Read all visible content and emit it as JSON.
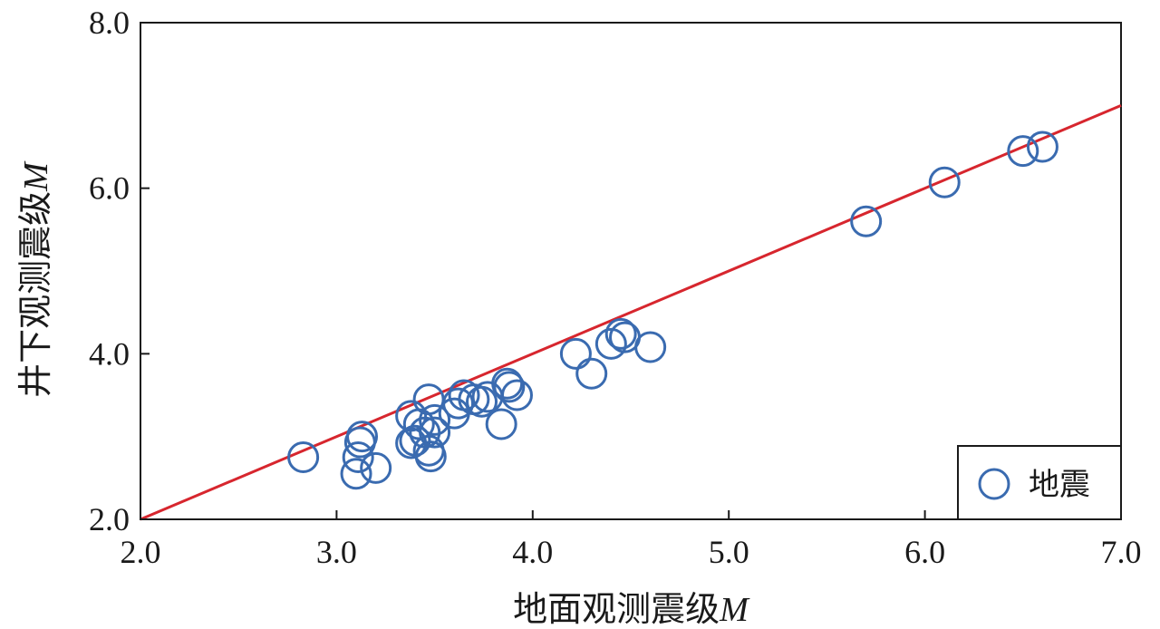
{
  "chart_data": {
    "type": "scatter",
    "title": "",
    "xlabel": "地面观测震级",
    "xlabel_var": "M",
    "ylabel": "井下观测震级",
    "ylabel_var": "M",
    "xlim": [
      2.0,
      7.0
    ],
    "ylim": [
      2.0,
      8.0
    ],
    "x_ticks": [
      "2.0",
      "3.0",
      "4.0",
      "5.0",
      "6.0",
      "7.0"
    ],
    "y_ticks": [
      "2.0",
      "4.0",
      "6.0",
      "8.0"
    ],
    "grid": false,
    "legend_position": "bottom-right",
    "series": [
      {
        "name": "地震",
        "marker": "open-circle",
        "color": "#3a6bb0",
        "points": [
          [
            2.83,
            2.75
          ],
          [
            3.1,
            2.55
          ],
          [
            3.11,
            2.75
          ],
          [
            3.12,
            2.93
          ],
          [
            3.13,
            3.0
          ],
          [
            3.2,
            2.62
          ],
          [
            3.38,
            2.92
          ],
          [
            3.38,
            3.25
          ],
          [
            3.4,
            2.95
          ],
          [
            3.42,
            3.15
          ],
          [
            3.45,
            3.05
          ],
          [
            3.47,
            2.83
          ],
          [
            3.47,
            3.45
          ],
          [
            3.48,
            2.76
          ],
          [
            3.5,
            3.2
          ],
          [
            3.5,
            3.05
          ],
          [
            3.6,
            3.28
          ],
          [
            3.62,
            3.4
          ],
          [
            3.65,
            3.5
          ],
          [
            3.7,
            3.45
          ],
          [
            3.74,
            3.42
          ],
          [
            3.77,
            3.48
          ],
          [
            3.84,
            3.15
          ],
          [
            3.87,
            3.64
          ],
          [
            3.88,
            3.6
          ],
          [
            3.92,
            3.5
          ],
          [
            4.22,
            4.0
          ],
          [
            4.3,
            3.76
          ],
          [
            4.4,
            4.12
          ],
          [
            4.45,
            4.24
          ],
          [
            4.47,
            4.2
          ],
          [
            4.6,
            4.08
          ],
          [
            5.7,
            5.6
          ],
          [
            6.1,
            6.07
          ],
          [
            6.5,
            6.45
          ],
          [
            6.6,
            6.5
          ]
        ]
      },
      {
        "name": "",
        "type": "line",
        "color": "#d7262e",
        "points": [
          [
            2.0,
            2.0
          ],
          [
            7.0,
            7.0
          ]
        ]
      }
    ]
  }
}
